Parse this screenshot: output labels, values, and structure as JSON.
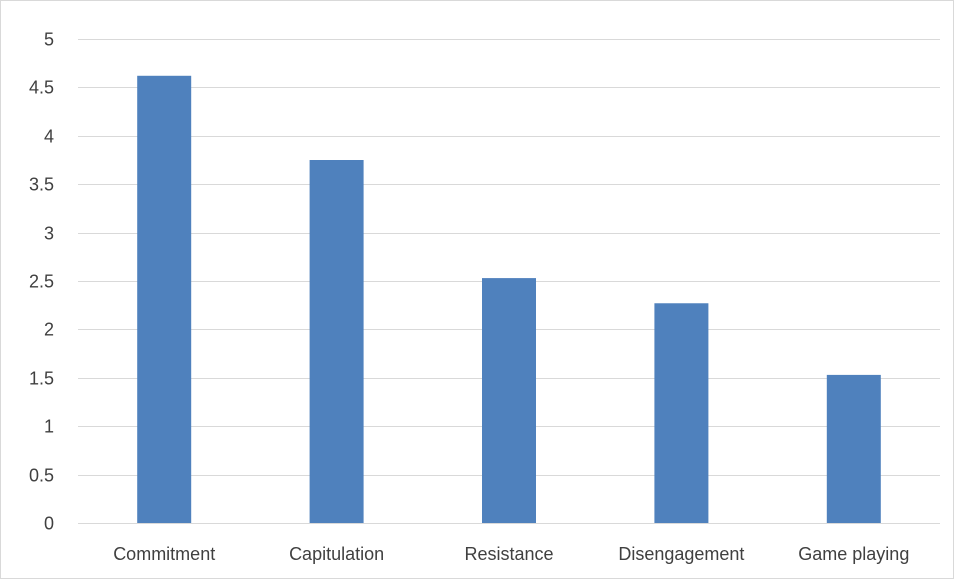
{
  "chart_data": {
    "type": "bar",
    "title": "",
    "xlabel": "",
    "ylabel": "",
    "categories": [
      "Commitment",
      "Capitulation",
      "Resistance",
      "Disengagement",
      "Game playing"
    ],
    "values": [
      4.62,
      3.75,
      2.53,
      2.27,
      1.53
    ],
    "ylim": [
      0,
      5
    ],
    "yticks": [
      "0",
      "0.5",
      "1",
      "1.5",
      "2",
      "2.5",
      "3",
      "3.5",
      "4",
      "4.5",
      "5"
    ],
    "grid": "horizontal",
    "legend": "none",
    "colors": {
      "bar": "#4f81bd",
      "grid": "#d9d9d9",
      "text": "#404040"
    }
  }
}
